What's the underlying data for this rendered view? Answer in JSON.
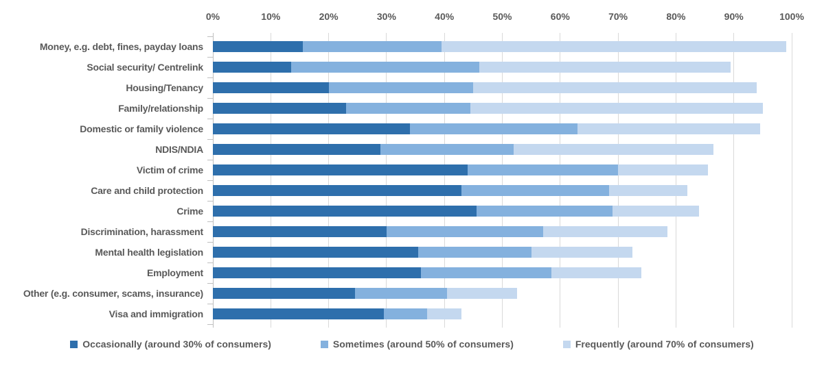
{
  "chart_data": {
    "type": "bar",
    "subtype": "horizontal-stacked",
    "unit": "percent",
    "title": "",
    "categories": [
      "Money, e.g. debt, fines, payday loans",
      "Social security/ Centrelink",
      "Housing/Tenancy",
      "Family/relationship",
      "Domestic or family violence",
      "NDIS/NDIA",
      "Victim of crime",
      "Care and child protection",
      "Crime",
      "Discrimination, harassment",
      "Mental health legislation",
      "Employment",
      "Other (e.g. consumer, scams, insurance)",
      "Visa and immigration"
    ],
    "series": [
      {
        "name": "Occasionally (around 30% of consumers)",
        "color": "#2E6FAC",
        "values": [
          15.5,
          13.5,
          20,
          23,
          34,
          29,
          44,
          43,
          45.5,
          30,
          35.5,
          36,
          24.5,
          29.5
        ]
      },
      {
        "name": "Sometimes (around 50% of consumers)",
        "color": "#84B1DE",
        "values": [
          24,
          32.5,
          25,
          21.5,
          29,
          23,
          26,
          25.5,
          23.5,
          27,
          19.5,
          22.5,
          16,
          7.5
        ]
      },
      {
        "name": "Frequently (around 70% of consumers)",
        "color": "#C4D8EF",
        "values": [
          59.5,
          43.5,
          49,
          50.5,
          31.5,
          34.5,
          15.5,
          13.5,
          15,
          21.5,
          17.5,
          15.5,
          12,
          6
        ]
      }
    ],
    "totals": [
      99,
      89.5,
      94,
      95,
      94.5,
      86.5,
      85.5,
      82,
      84,
      78.5,
      72.5,
      74,
      52.5,
      43
    ],
    "x_axis": {
      "min": 0,
      "max": 100,
      "step": 10,
      "tick_labels": [
        "0%",
        "10%",
        "20%",
        "30%",
        "40%",
        "50%",
        "60%",
        "70%",
        "80%",
        "90%",
        "100%"
      ],
      "position": "top"
    },
    "grid": true,
    "legend_position": "bottom"
  },
  "legend": {
    "items": [
      {
        "label": "Occasionally (around 30% of consumers)",
        "color": "#2E6FAC"
      },
      {
        "label": "Sometimes (around 50% of consumers)",
        "color": "#84B1DE"
      },
      {
        "label": "Frequently (around 70% of consumers)",
        "color": "#C4D8EF"
      }
    ]
  },
  "colors": {
    "axis_text": "#595959",
    "category_text": "#595959",
    "gridline": "#D9D9D9",
    "axis_line": "#BFBFBF",
    "background": "#FFFFFF"
  }
}
